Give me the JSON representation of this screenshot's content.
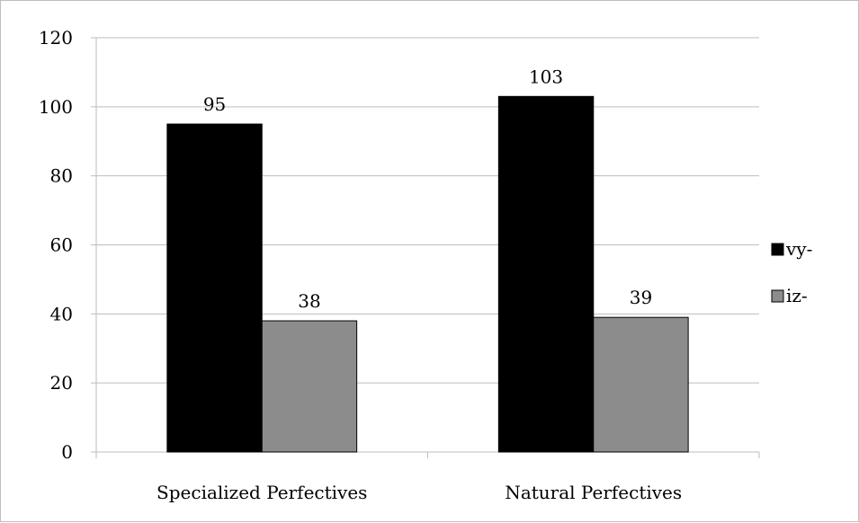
{
  "chart_data": {
    "type": "bar",
    "title": "",
    "xlabel": "",
    "ylabel": "",
    "categories": [
      "Specialized Perfectives",
      "Natural Perfectives"
    ],
    "series": [
      {
        "name": "vy-",
        "color": "#000000",
        "values": [
          95,
          103
        ]
      },
      {
        "name": "iz-",
        "color": "#8c8c8c",
        "values": [
          38,
          39
        ]
      }
    ],
    "ylim": [
      0,
      120
    ],
    "yticks": [
      0,
      20,
      40,
      60,
      80,
      100,
      120
    ],
    "data_labels": true,
    "grid": true,
    "legend_position": "right"
  }
}
